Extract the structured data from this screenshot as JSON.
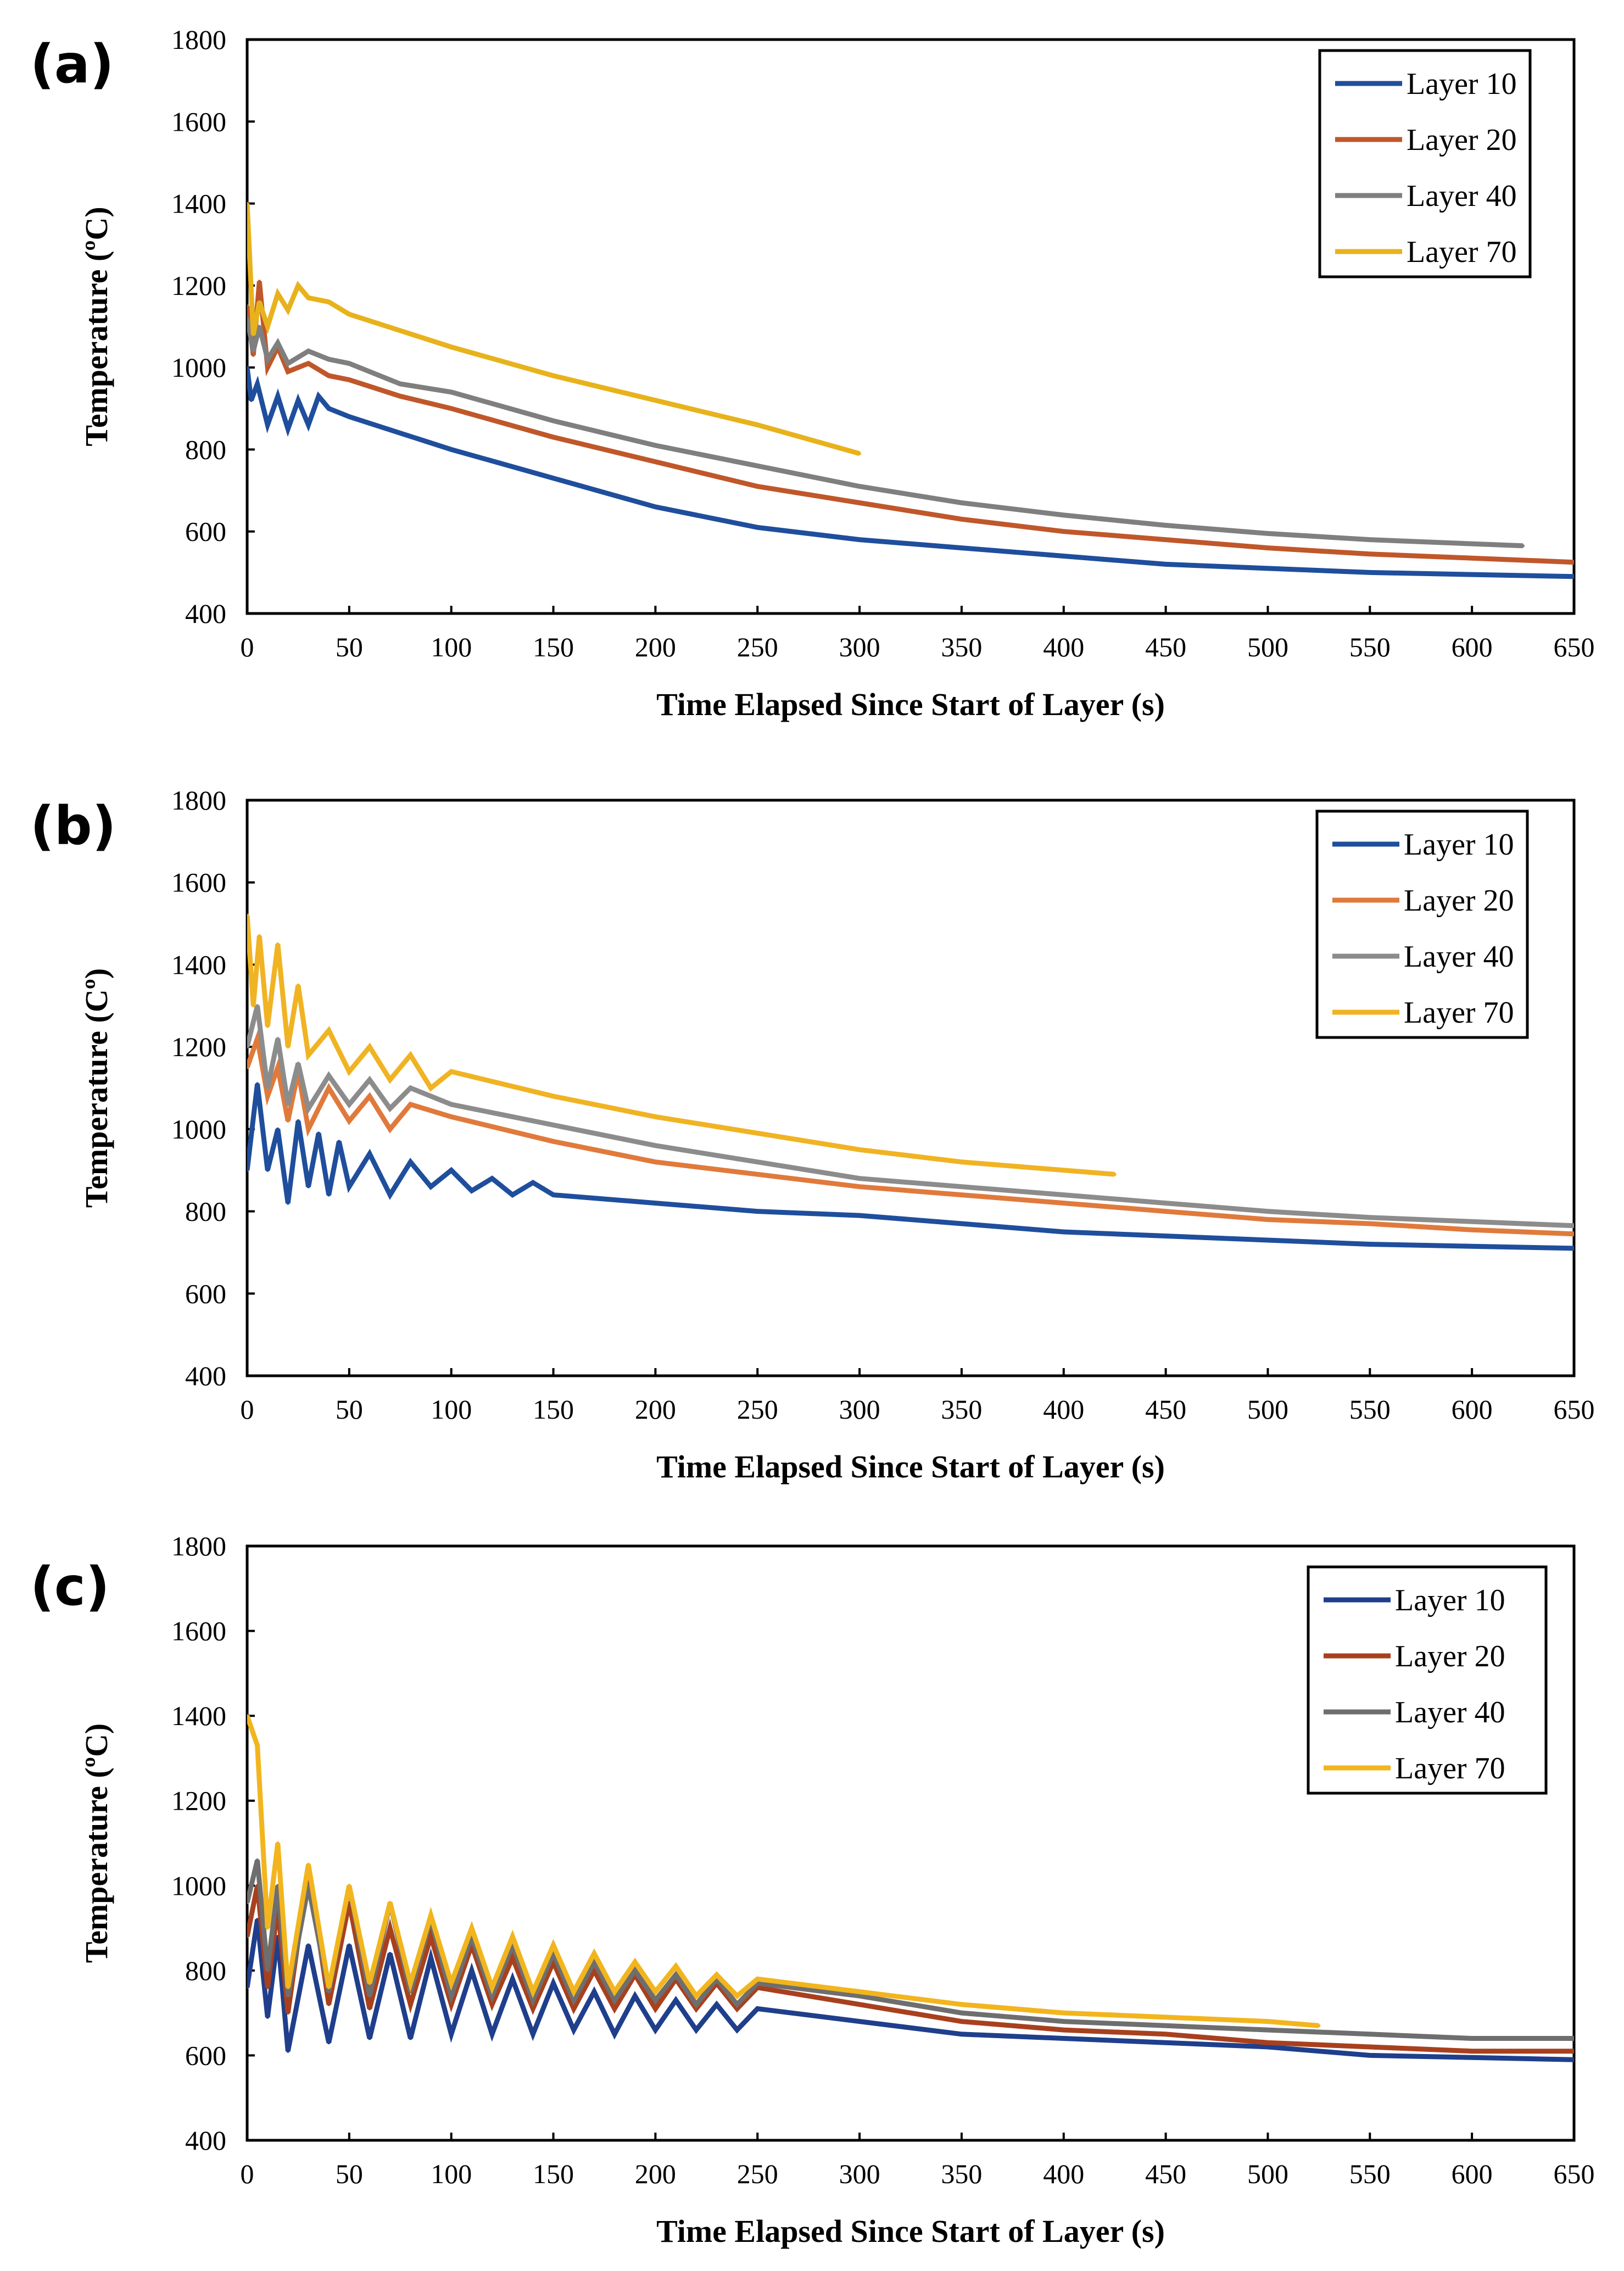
{
  "chart_data": [
    {
      "type": "line",
      "panel_label": "(a)",
      "xlabel": "Time Elapsed Since Start of Layer (s)",
      "ylabel": "Temperature (ºC)",
      "xlim": [
        0,
        650
      ],
      "ylim": [
        400,
        1800
      ],
      "xticks": [
        0,
        50,
        100,
        150,
        200,
        250,
        300,
        350,
        400,
        450,
        500,
        550,
        600,
        650
      ],
      "yticks": [
        400,
        600,
        800,
        1000,
        1200,
        1400,
        1600,
        1800
      ],
      "legend_position": "top-right",
      "series": [
        {
          "name": "Layer 10",
          "color": "#1f4e9c",
          "x": [
            0,
            2,
            5,
            10,
            15,
            20,
            25,
            30,
            35,
            40,
            50,
            75,
            100,
            150,
            200,
            250,
            300,
            350,
            400,
            450,
            500,
            550,
            600,
            650
          ],
          "y": [
            1000,
            920,
            960,
            860,
            930,
            850,
            920,
            860,
            930,
            900,
            880,
            840,
            800,
            730,
            660,
            610,
            580,
            560,
            540,
            520,
            510,
            500,
            495,
            490
          ]
        },
        {
          "name": "Layer 20",
          "color": "#c0572a",
          "x": [
            0,
            3,
            6,
            10,
            15,
            20,
            30,
            40,
            50,
            75,
            100,
            150,
            200,
            250,
            300,
            350,
            400,
            450,
            500,
            550,
            600,
            650
          ],
          "y": [
            1150,
            1030,
            1210,
            1000,
            1050,
            990,
            1010,
            980,
            970,
            930,
            900,
            830,
            770,
            710,
            670,
            630,
            600,
            580,
            560,
            545,
            535,
            525
          ]
        },
        {
          "name": "Layer 40",
          "color": "#7f7f7f",
          "x": [
            0,
            3,
            6,
            10,
            15,
            20,
            30,
            40,
            50,
            75,
            100,
            150,
            200,
            250,
            300,
            350,
            400,
            450,
            500,
            550,
            600,
            625
          ],
          "y": [
            1120,
            1040,
            1100,
            1020,
            1060,
            1010,
            1040,
            1020,
            1010,
            960,
            940,
            870,
            810,
            760,
            710,
            670,
            640,
            615,
            595,
            580,
            570,
            565
          ]
        },
        {
          "name": "Layer 70",
          "color": "#e8b21c",
          "x": [
            0,
            3,
            6,
            10,
            15,
            20,
            25,
            30,
            40,
            50,
            75,
            100,
            150,
            200,
            250,
            300
          ],
          "y": [
            1400,
            1080,
            1160,
            1100,
            1180,
            1140,
            1200,
            1170,
            1160,
            1130,
            1090,
            1050,
            980,
            920,
            860,
            790
          ]
        }
      ]
    },
    {
      "type": "line",
      "panel_label": "(b)",
      "xlabel": "Time Elapsed Since Start of Layer (s)",
      "ylabel": "Temperature (Cº)",
      "xlim": [
        0,
        650
      ],
      "ylim": [
        400,
        1800
      ],
      "xticks": [
        0,
        50,
        100,
        150,
        200,
        250,
        300,
        350,
        400,
        450,
        500,
        550,
        600,
        650
      ],
      "yticks": [
        400,
        600,
        800,
        1000,
        1200,
        1400,
        1600,
        1800
      ],
      "legend_position": "top-right",
      "series": [
        {
          "name": "Layer 10",
          "color": "#1f4e9c",
          "x": [
            0,
            5,
            10,
            15,
            20,
            25,
            30,
            35,
            40,
            45,
            50,
            60,
            70,
            80,
            90,
            100,
            110,
            120,
            130,
            140,
            150,
            200,
            250,
            300,
            350,
            400,
            450,
            500,
            550,
            600,
            650
          ],
          "y": [
            900,
            1110,
            900,
            1000,
            820,
            1020,
            860,
            990,
            840,
            970,
            860,
            940,
            840,
            920,
            860,
            900,
            850,
            880,
            840,
            870,
            840,
            820,
            800,
            790,
            770,
            750,
            740,
            730,
            720,
            715,
            710
          ]
        },
        {
          "name": "Layer 20",
          "color": "#e07a3c",
          "x": [
            0,
            5,
            10,
            15,
            20,
            25,
            30,
            40,
            50,
            60,
            70,
            80,
            100,
            150,
            200,
            250,
            300,
            350,
            400,
            450,
            500,
            550,
            600,
            650
          ],
          "y": [
            1150,
            1220,
            1080,
            1150,
            1020,
            1140,
            1000,
            1100,
            1020,
            1080,
            1000,
            1060,
            1030,
            970,
            920,
            890,
            860,
            840,
            820,
            800,
            780,
            770,
            755,
            745
          ]
        },
        {
          "name": "Layer 40",
          "color": "#8c8c8c",
          "x": [
            0,
            5,
            10,
            15,
            20,
            25,
            30,
            40,
            50,
            60,
            70,
            80,
            100,
            150,
            200,
            250,
            300,
            350,
            400,
            450,
            500,
            550,
            600,
            650
          ],
          "y": [
            1200,
            1300,
            1100,
            1220,
            1060,
            1160,
            1050,
            1130,
            1060,
            1120,
            1050,
            1100,
            1060,
            1010,
            960,
            920,
            880,
            860,
            840,
            820,
            800,
            785,
            775,
            765
          ]
        },
        {
          "name": "Layer 70",
          "color": "#f0b323",
          "x": [
            0,
            3,
            6,
            10,
            15,
            20,
            25,
            30,
            40,
            50,
            60,
            70,
            80,
            90,
            100,
            150,
            200,
            250,
            300,
            350,
            400,
            425
          ],
          "y": [
            1520,
            1300,
            1470,
            1250,
            1450,
            1200,
            1350,
            1180,
            1240,
            1140,
            1200,
            1120,
            1180,
            1100,
            1140,
            1080,
            1030,
            990,
            950,
            920,
            900,
            890
          ]
        }
      ]
    },
    {
      "type": "line",
      "panel_label": "(c)",
      "xlabel": "Time Elapsed Since Start of Layer (s)",
      "ylabel": "Temperature (ºC)",
      "xlim": [
        0,
        650
      ],
      "ylim": [
        400,
        1800
      ],
      "xticks": [
        0,
        50,
        100,
        150,
        200,
        250,
        300,
        350,
        400,
        450,
        500,
        550,
        600,
        650
      ],
      "yticks": [
        400,
        600,
        800,
        1000,
        1200,
        1400,
        1600,
        1800
      ],
      "legend_position": "top-right",
      "series": [
        {
          "name": "Layer 10",
          "color": "#1f3f8c",
          "x": [
            0,
            5,
            10,
            15,
            20,
            30,
            40,
            50,
            60,
            70,
            80,
            90,
            100,
            110,
            120,
            130,
            140,
            150,
            160,
            170,
            180,
            190,
            200,
            210,
            220,
            230,
            240,
            250,
            300,
            350,
            400,
            450,
            500,
            550,
            600,
            650
          ],
          "y": [
            760,
            920,
            690,
            880,
            610,
            860,
            630,
            860,
            640,
            840,
            640,
            830,
            650,
            800,
            650,
            780,
            650,
            770,
            660,
            750,
            650,
            740,
            660,
            730,
            660,
            720,
            660,
            710,
            680,
            650,
            640,
            630,
            620,
            600,
            595,
            590
          ]
        },
        {
          "name": "Layer 20",
          "color": "#a8401e",
          "x": [
            0,
            5,
            10,
            15,
            20,
            30,
            40,
            50,
            60,
            70,
            80,
            90,
            100,
            110,
            120,
            130,
            140,
            150,
            160,
            170,
            180,
            190,
            200,
            210,
            220,
            230,
            240,
            250,
            300,
            350,
            400,
            450,
            500,
            550,
            600,
            650
          ],
          "y": [
            880,
            1000,
            760,
            950,
            700,
            1040,
            720,
            960,
            710,
            900,
            720,
            880,
            720,
            860,
            720,
            830,
            710,
            820,
            710,
            800,
            710,
            790,
            710,
            780,
            710,
            770,
            710,
            760,
            720,
            680,
            660,
            650,
            630,
            620,
            610,
            610
          ]
        },
        {
          "name": "Layer 40",
          "color": "#6e6e6e",
          "x": [
            0,
            5,
            10,
            15,
            20,
            30,
            40,
            50,
            60,
            70,
            80,
            90,
            100,
            110,
            120,
            130,
            140,
            150,
            160,
            170,
            180,
            190,
            200,
            210,
            220,
            230,
            240,
            250,
            300,
            350,
            400,
            450,
            500,
            550,
            600,
            650
          ],
          "y": [
            960,
            1060,
            800,
            1000,
            740,
            1000,
            750,
            1000,
            740,
            960,
            750,
            920,
            740,
            880,
            740,
            860,
            730,
            840,
            730,
            820,
            730,
            800,
            730,
            790,
            720,
            780,
            720,
            770,
            740,
            700,
            680,
            670,
            660,
            650,
            640,
            640
          ]
        },
        {
          "name": "Layer 70",
          "color": "#f2b51e",
          "x": [
            0,
            5,
            10,
            15,
            20,
            30,
            40,
            50,
            60,
            70,
            80,
            90,
            100,
            110,
            120,
            130,
            140,
            150,
            160,
            170,
            180,
            190,
            200,
            210,
            220,
            230,
            240,
            250,
            300,
            350,
            400,
            450,
            500,
            525
          ],
          "y": [
            1400,
            1330,
            900,
            1100,
            760,
            1050,
            760,
            1000,
            770,
            960,
            770,
            930,
            770,
            900,
            760,
            880,
            750,
            860,
            750,
            840,
            750,
            820,
            750,
            810,
            740,
            790,
            740,
            780,
            750,
            720,
            700,
            690,
            680,
            670
          ]
        }
      ]
    }
  ]
}
